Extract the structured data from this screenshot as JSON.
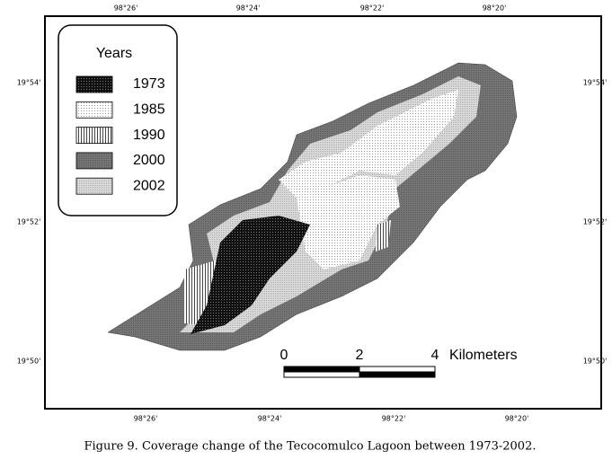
{
  "map": {
    "top_labels": [
      "98°26'",
      "98°24'",
      "98°22'",
      "98°20'"
    ],
    "bottom_labels": [
      "98°26'",
      "98°24'",
      "98°22'",
      "98°20'"
    ],
    "left_labels": [
      "19°54'",
      "19°52'",
      "19°50'"
    ],
    "right_labels": [
      "19°54'",
      "19°52'",
      "19°50'"
    ],
    "legend": {
      "title": "Years",
      "items": [
        "1973",
        "1985",
        "1990",
        "2000",
        "2002"
      ]
    },
    "scale_bar": {
      "labels": [
        "0",
        "2",
        "4"
      ],
      "unit": "Kilometers"
    }
  },
  "figure": {
    "caption": "Figure 9. Coverage change of the Tecocomulco Lagoon between 1973-2002."
  }
}
